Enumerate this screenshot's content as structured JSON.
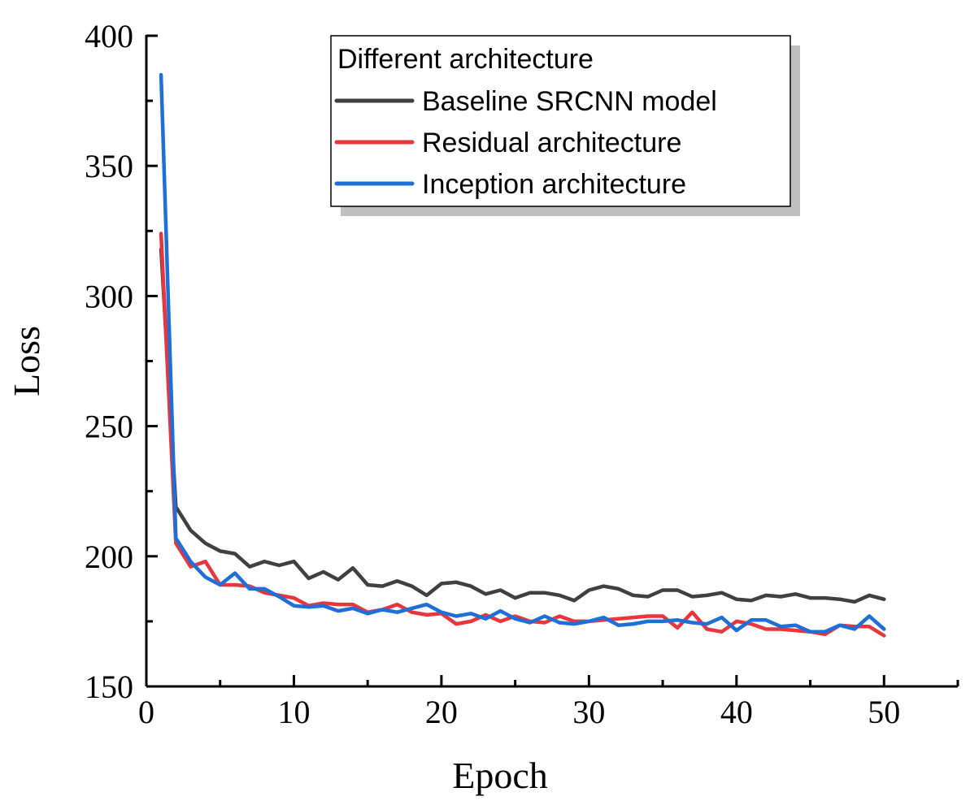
{
  "chart_data": {
    "type": "line",
    "xlabel": "Epoch",
    "ylabel": "Loss",
    "xlim": [
      0,
      55
    ],
    "ylim": [
      150,
      400
    ],
    "x_ticks": [
      0,
      10,
      20,
      30,
      40,
      50
    ],
    "y_ticks": [
      150,
      200,
      250,
      300,
      350,
      400
    ],
    "grid": false,
    "legend": {
      "title": "Different architecture",
      "position": "top-right"
    },
    "x": [
      1,
      2,
      3,
      4,
      5,
      6,
      7,
      8,
      9,
      10,
      11,
      12,
      13,
      14,
      15,
      16,
      17,
      18,
      19,
      20,
      21,
      22,
      23,
      24,
      25,
      26,
      27,
      28,
      29,
      30,
      31,
      32,
      33,
      34,
      35,
      36,
      37,
      38,
      39,
      40,
      41,
      42,
      43,
      44,
      45,
      46,
      47,
      48,
      49,
      50
    ],
    "series": [
      {
        "name": "Baseline SRCNN model",
        "color": "#404040",
        "values": [
          318,
          219,
          210,
          205,
          202,
          201,
          196,
          198,
          196.5,
          198,
          191.5,
          194,
          191,
          195.5,
          189,
          188.5,
          190.5,
          188.5,
          185,
          189.5,
          190,
          188.5,
          185.5,
          187,
          184,
          186,
          186,
          185,
          183,
          187,
          188.5,
          187.5,
          185,
          184.5,
          187,
          187,
          184.5,
          185,
          186,
          183.5,
          183,
          185,
          184.5,
          185.5,
          184,
          184,
          183.5,
          182.5,
          185,
          183.5
        ]
      },
      {
        "name": "Residual architecture",
        "color": "#e8363d",
        "values": [
          324,
          205,
          196,
          198,
          189,
          189,
          188.5,
          186,
          185,
          184,
          181,
          182,
          181.5,
          181.5,
          178.5,
          179.5,
          181.5,
          178.5,
          177.5,
          178,
          174,
          175,
          177.5,
          175,
          177,
          175,
          174.5,
          177,
          175,
          175,
          175.5,
          176,
          176.5,
          177,
          177,
          172.5,
          178.5,
          172,
          171,
          175,
          174,
          172,
          172,
          171.5,
          171,
          170,
          173.5,
          173,
          173,
          169.5
        ]
      },
      {
        "name": "Inception architecture",
        "color": "#1f6fd8",
        "values": [
          385,
          207,
          198,
          192,
          189,
          193.5,
          187.5,
          187.5,
          184.5,
          181,
          180.5,
          181,
          179,
          180,
          178,
          179.5,
          178.5,
          180,
          181.5,
          178.5,
          177,
          178,
          176,
          179,
          176,
          174.5,
          177,
          174.5,
          174,
          175,
          176.5,
          173.5,
          174,
          175,
          175,
          175.5,
          174.5,
          174,
          176.5,
          171.5,
          175.5,
          175.5,
          173,
          173.5,
          171,
          171,
          173.5,
          172,
          177,
          172
        ]
      }
    ]
  }
}
